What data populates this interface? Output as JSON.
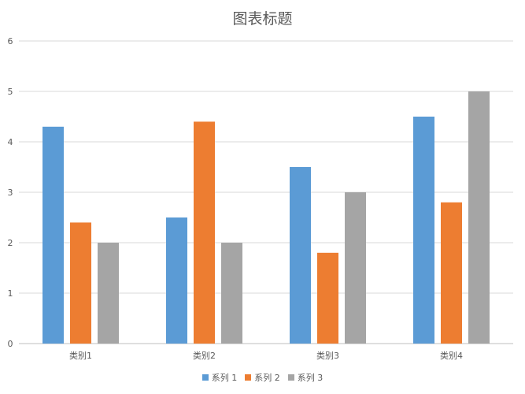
{
  "chart_data": {
    "type": "bar",
    "title": "图表标题",
    "xlabel": "",
    "ylabel": "",
    "categories": [
      "类别1",
      "类别2",
      "类别3",
      "类别4"
    ],
    "series": [
      {
        "name": "系列 1",
        "values": [
          4.3,
          2.5,
          3.5,
          4.5
        ],
        "color": "#5B9BD5"
      },
      {
        "name": "系列 2",
        "values": [
          2.4,
          4.4,
          1.8,
          2.8
        ],
        "color": "#ED7D31"
      },
      {
        "name": "系列 3",
        "values": [
          2,
          2,
          3,
          5
        ],
        "color": "#A5A5A5"
      }
    ],
    "ylim": [
      0,
      6
    ],
    "yticks": [
      "0",
      "1",
      "2",
      "3",
      "4",
      "5",
      "6"
    ],
    "grid": true,
    "legend_position": "bottom"
  }
}
